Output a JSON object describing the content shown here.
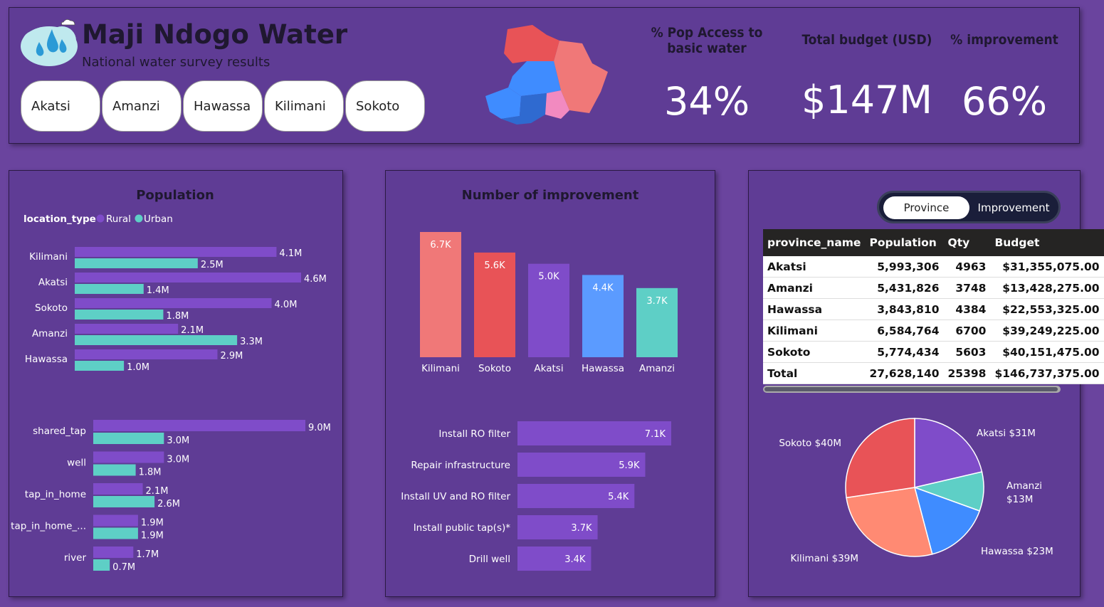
{
  "header": {
    "app_title": "Maji Ndogo Water",
    "subtitle": "National water survey results",
    "slicer": [
      "Akatsi",
      "Amanzi",
      "Hawassa",
      "Kilimani",
      "Sokoto"
    ],
    "kpis": [
      {
        "label": "% Pop Access to basic water",
        "value": "34%"
      },
      {
        "label": "Total budget (USD)",
        "value": "$147M"
      },
      {
        "label": "% improvement",
        "value": "66%"
      }
    ]
  },
  "colors": {
    "rural": "#7f4cc9",
    "urban": "#5ecfc6",
    "background": "#6a449e",
    "panel": "#5f3c95"
  },
  "toggle": {
    "active": "Province",
    "inactive": "Improvement"
  },
  "chart_data": [
    {
      "type": "bar",
      "title": "Population",
      "orientation": "horizontal",
      "legend_title": "location_type",
      "legend_position": "top-left",
      "categories": [
        "Kilimani",
        "Akatsi",
        "Sokoto",
        "Amanzi",
        "Hawassa"
      ],
      "series": [
        {
          "name": "Rural",
          "values": [
            4.1,
            4.6,
            4.0,
            2.1,
            2.9
          ],
          "labels": [
            "4.1M",
            "4.6M",
            "4.0M",
            "2.1M",
            "2.9M"
          ]
        },
        {
          "name": "Urban",
          "values": [
            2.5,
            1.4,
            1.8,
            3.3,
            1.0
          ],
          "labels": [
            "2.5M",
            "1.4M",
            "1.8M",
            "3.3M",
            "1.0M"
          ]
        }
      ]
    },
    {
      "type": "bar",
      "orientation": "horizontal",
      "categories": [
        "shared_tap",
        "well",
        "tap_in_home",
        "tap_in_home_...",
        "river"
      ],
      "series": [
        {
          "name": "Rural",
          "values": [
            9.0,
            3.0,
            2.1,
            1.9,
            1.7
          ],
          "labels": [
            "9.0M",
            "3.0M",
            "2.1M",
            "1.9M",
            "1.7M"
          ]
        },
        {
          "name": "Urban",
          "values": [
            3.0,
            1.8,
            2.6,
            1.9,
            0.7
          ],
          "labels": [
            "3.0M",
            "1.8M",
            "2.6M",
            "1.9M",
            "0.7M"
          ]
        }
      ]
    },
    {
      "type": "bar",
      "title": "Number of improvement",
      "orientation": "vertical",
      "categories": [
        "Kilimani",
        "Sokoto",
        "Akatsi",
        "Hawassa",
        "Amanzi"
      ],
      "values": [
        6.7,
        5.6,
        5.0,
        4.4,
        3.7
      ],
      "labels": [
        "6.7K",
        "5.6K",
        "5.0K",
        "4.4K",
        "3.7K"
      ],
      "colors": [
        "#f07878",
        "#e85357",
        "#7f4cc9",
        "#5b9bff",
        "#5ecfc6"
      ]
    },
    {
      "type": "bar",
      "orientation": "horizontal",
      "categories": [
        "Install RO filter",
        "Repair infrastructure",
        "Install UV and RO filter",
        "Install public tap(s)*",
        "Drill well"
      ],
      "values": [
        7.1,
        5.9,
        5.4,
        3.7,
        3.4
      ],
      "labels": [
        "7.1K",
        "5.9K",
        "5.4K",
        "3.7K",
        "3.4K"
      ]
    },
    {
      "type": "table",
      "columns": [
        "province_name",
        "Population",
        "Qty",
        "Budget"
      ],
      "rows": [
        [
          "Akatsi",
          "5,993,306",
          "4963",
          "$31,355,075.00"
        ],
        [
          "Amanzi",
          "5,431,826",
          "3748",
          "$13,428,275.00"
        ],
        [
          "Hawassa",
          "3,843,810",
          "4384",
          "$22,553,325.00"
        ],
        [
          "Kilimani",
          "6,584,764",
          "6700",
          "$39,249,225.00"
        ],
        [
          "Sokoto",
          "5,774,434",
          "5603",
          "$40,151,475.00"
        ]
      ],
      "total": [
        "Total",
        "27,628,140",
        "25398",
        "$146,737,375.00"
      ]
    },
    {
      "type": "pie",
      "categories": [
        "Akatsi",
        "Amanzi",
        "Hawassa",
        "Kilimani",
        "Sokoto"
      ],
      "values": [
        31.36,
        13.43,
        22.55,
        39.25,
        40.15
      ],
      "labels": [
        "Akatsi $31M",
        "Amanzi $13M",
        "Hawassa $23M",
        "Kilimani $39M",
        "Sokoto $40M"
      ],
      "colors": [
        "#7f4cc9",
        "#5ecfc6",
        "#3f8cff",
        "#ff8a73",
        "#e85357"
      ]
    }
  ]
}
